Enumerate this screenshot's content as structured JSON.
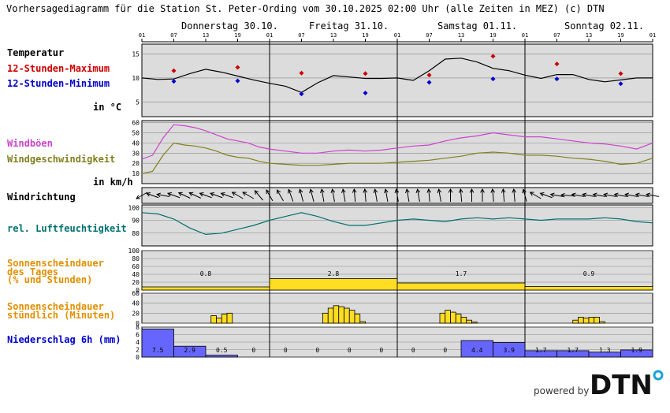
{
  "title": "Vorhersagediagramm für die Station St. Peter-Ording vom 30.10.2025 02:00 Uhr (alle Zeiten in MEZ)   (c) DTN",
  "days": [
    "Donnerstag 30.10.",
    "Freitag 31.10.",
    "Samstag 01.11.",
    "Sonntag 02.11."
  ],
  "hour_ticks": [
    "01",
    "07",
    "13",
    "19",
    "01",
    "07",
    "13",
    "19",
    "01",
    "07",
    "13",
    "19",
    "01",
    "07",
    "13",
    "19",
    "01"
  ],
  "labels": {
    "temp": "Temperatur",
    "tmax": "12-Stunden-Maximum",
    "tmin": "12-Stunden-Minimum",
    "temp_unit": "in °C",
    "gust": "Windböen",
    "wind": "Windgeschwindigkeit",
    "wind_unit": "in km/h",
    "winddir": "Windrichtung",
    "hum": "rel. Luftfeuchtigkeit",
    "sun_day_1": "Sonnenscheindauer",
    "sun_day_2": "des Tages",
    "sun_day_3": "(% und Stunden)",
    "sun_hr_1": "Sonnenscheindauer",
    "sun_hr_2": "stündlich (Minuten)",
    "precip": "Niederschlag 6h (mm)"
  },
  "footer": {
    "powered_by": "powered by",
    "logo_text": "DTN"
  },
  "colors": {
    "panel_bg": "#dcdcdc",
    "temp": "#000000",
    "tmax": "#cc0000",
    "tmin": "#0000cc",
    "gust": "#cc44cc",
    "wind": "#808020",
    "hum": "#007070",
    "sun": "#ffdd22",
    "sun_label": "#e09000",
    "precip": "#6666ff",
    "precip_label": "#0000cc"
  },
  "chart_data": [
    {
      "type": "line",
      "name": "temperature",
      "ylim": [
        2,
        17
      ],
      "yticks": [
        5,
        10,
        15
      ],
      "x_hours": [
        0,
        3,
        6,
        9,
        12,
        15,
        18,
        21,
        24,
        27,
        30,
        33,
        36,
        39,
        42,
        45,
        48,
        51,
        54,
        57,
        60,
        63,
        66,
        69,
        72,
        75,
        78,
        81,
        84,
        87,
        90,
        93,
        96
      ],
      "values": [
        10,
        9.7,
        9.8,
        10.9,
        11.8,
        11.2,
        10.4,
        9.6,
        8.9,
        8.3,
        7.0,
        9.0,
        10.5,
        10.2,
        9.9,
        9.9,
        10.0,
        9.5,
        11.5,
        13.9,
        14.1,
        13.3,
        12.0,
        11.5,
        10.6,
        9.9,
        10.7,
        10.7,
        9.7,
        9.2,
        9.6,
        10.0,
        10.0
      ],
      "series_max": {
        "x_hours": [
          6,
          18,
          30,
          42,
          54,
          66,
          78,
          90
        ],
        "values": [
          11.5,
          12.2,
          11.0,
          10.9,
          10.6,
          14.5,
          12.9,
          10.9
        ]
      },
      "series_min": {
        "x_hours": [
          6,
          18,
          30,
          42,
          54,
          66,
          78,
          90
        ],
        "values": [
          9.3,
          9.4,
          6.7,
          6.9,
          9.1,
          9.8,
          9.8,
          8.8
        ]
      }
    },
    {
      "type": "line",
      "name": "wind",
      "ylim": [
        0,
        62
      ],
      "yticks": [
        10,
        20,
        30,
        40,
        50,
        60
      ],
      "x_hours": [
        0,
        2,
        4,
        6,
        8,
        10,
        12,
        14,
        16,
        18,
        20,
        22,
        24,
        27,
        30,
        33,
        36,
        39,
        42,
        45,
        48,
        51,
        54,
        57,
        60,
        63,
        66,
        69,
        72,
        75,
        78,
        81,
        84,
        87,
        90,
        93,
        96
      ],
      "gusts": [
        24,
        28,
        45,
        58,
        57,
        55,
        52,
        48,
        44,
        42,
        40,
        36,
        34,
        32,
        30,
        30,
        32,
        33,
        32,
        33,
        35,
        37,
        38,
        42,
        45,
        47,
        50,
        48,
        46,
        46,
        44,
        42,
        40,
        39,
        37,
        34,
        40
      ],
      "speed": [
        10,
        12,
        28,
        40,
        38,
        37,
        35,
        32,
        28,
        26,
        25,
        22,
        20,
        19,
        18,
        18,
        19,
        20,
        20,
        20,
        21,
        22,
        23,
        25,
        27,
        30,
        31,
        30,
        28,
        28,
        27,
        25,
        24,
        22,
        19,
        20,
        25
      ]
    },
    {
      "type": "line",
      "name": "wind_direction_degrees",
      "x_hours": [
        0,
        2,
        4,
        6,
        8,
        10,
        12,
        14,
        16,
        18,
        20,
        22,
        24,
        26,
        28,
        30,
        32,
        34,
        36,
        38,
        40,
        42,
        44,
        46,
        48,
        50,
        52,
        54,
        56,
        58,
        60,
        62,
        64,
        66,
        68,
        70,
        72,
        74,
        76,
        78,
        80,
        82,
        84,
        86,
        88,
        90,
        92,
        94,
        96
      ],
      "values": [
        60,
        110,
        100,
        110,
        115,
        115,
        110,
        110,
        110,
        120,
        120,
        140,
        150,
        150,
        160,
        165,
        165,
        170,
        170,
        170,
        175,
        175,
        170,
        170,
        170,
        170,
        170,
        175,
        170,
        180,
        175,
        180,
        180,
        175,
        175,
        175,
        165,
        120,
        110,
        100,
        95,
        100,
        100,
        100,
        100,
        100,
        100,
        100,
        100
      ]
    },
    {
      "type": "line",
      "name": "humidity",
      "ylim": [
        70,
        102
      ],
      "yticks": [
        80,
        90,
        100
      ],
      "x_hours": [
        0,
        3,
        6,
        9,
        12,
        15,
        18,
        21,
        24,
        27,
        30,
        33,
        36,
        39,
        42,
        45,
        48,
        51,
        54,
        57,
        60,
        63,
        66,
        69,
        72,
        75,
        78,
        81,
        84,
        87,
        90,
        93,
        96
      ],
      "values": [
        96,
        95,
        91,
        84,
        79,
        80,
        83,
        86,
        90,
        93,
        96,
        93,
        89,
        86,
        86,
        88,
        90,
        91,
        90,
        89,
        91,
        92,
        91,
        92,
        91,
        90,
        91,
        91,
        91,
        92,
        91,
        89,
        88
      ]
    },
    {
      "type": "bar",
      "name": "daily_sunshine",
      "ylim": [
        0,
        100
      ],
      "yticks": [
        0,
        20,
        40,
        60,
        80,
        100
      ],
      "categories": [
        "30.10.",
        "31.10.",
        "01.11.",
        "02.11."
      ],
      "percent": [
        8,
        29,
        18,
        9
      ],
      "hours": [
        "0.8",
        "2.8",
        "1.7",
        "0.9"
      ]
    },
    {
      "type": "bar",
      "name": "hourly_sunshine_minutes",
      "ylim": [
        0,
        60
      ],
      "yticks": [
        0,
        20,
        40,
        60
      ],
      "x_hours": [
        13,
        14,
        15,
        16,
        34,
        35,
        36,
        37,
        38,
        39,
        40,
        41,
        56,
        57,
        58,
        59,
        60,
        61,
        62,
        81,
        82,
        83,
        84,
        85,
        86
      ],
      "values": [
        15,
        10,
        18,
        20,
        20,
        30,
        35,
        33,
        30,
        26,
        18,
        3,
        20,
        26,
        22,
        18,
        12,
        6,
        2,
        6,
        12,
        10,
        12,
        12,
        3
      ]
    },
    {
      "type": "bar",
      "name": "precipitation_6h",
      "ylim": [
        0,
        8
      ],
      "yticks": [
        0,
        2,
        4,
        6,
        8
      ],
      "bins": [
        "01-07",
        "07-13",
        "13-19",
        "19-01",
        "01-07",
        "07-13",
        "13-19",
        "19-01",
        "01-07",
        "07-13",
        "13-19",
        "19-01",
        "01-07",
        "07-13",
        "13-19",
        "19-01"
      ],
      "values": [
        7.5,
        2.9,
        0.5,
        0,
        0,
        0,
        0,
        0,
        0,
        0,
        4.4,
        3.9,
        1.7,
        1.7,
        1.3,
        1.9
      ],
      "labels": [
        "7.5",
        "2.9",
        "0.5",
        "0",
        "0",
        "0",
        "0",
        "0",
        "0",
        "0",
        "4.4",
        "3.9",
        "1.7",
        "1.7",
        "1.3",
        "1.9"
      ]
    }
  ]
}
